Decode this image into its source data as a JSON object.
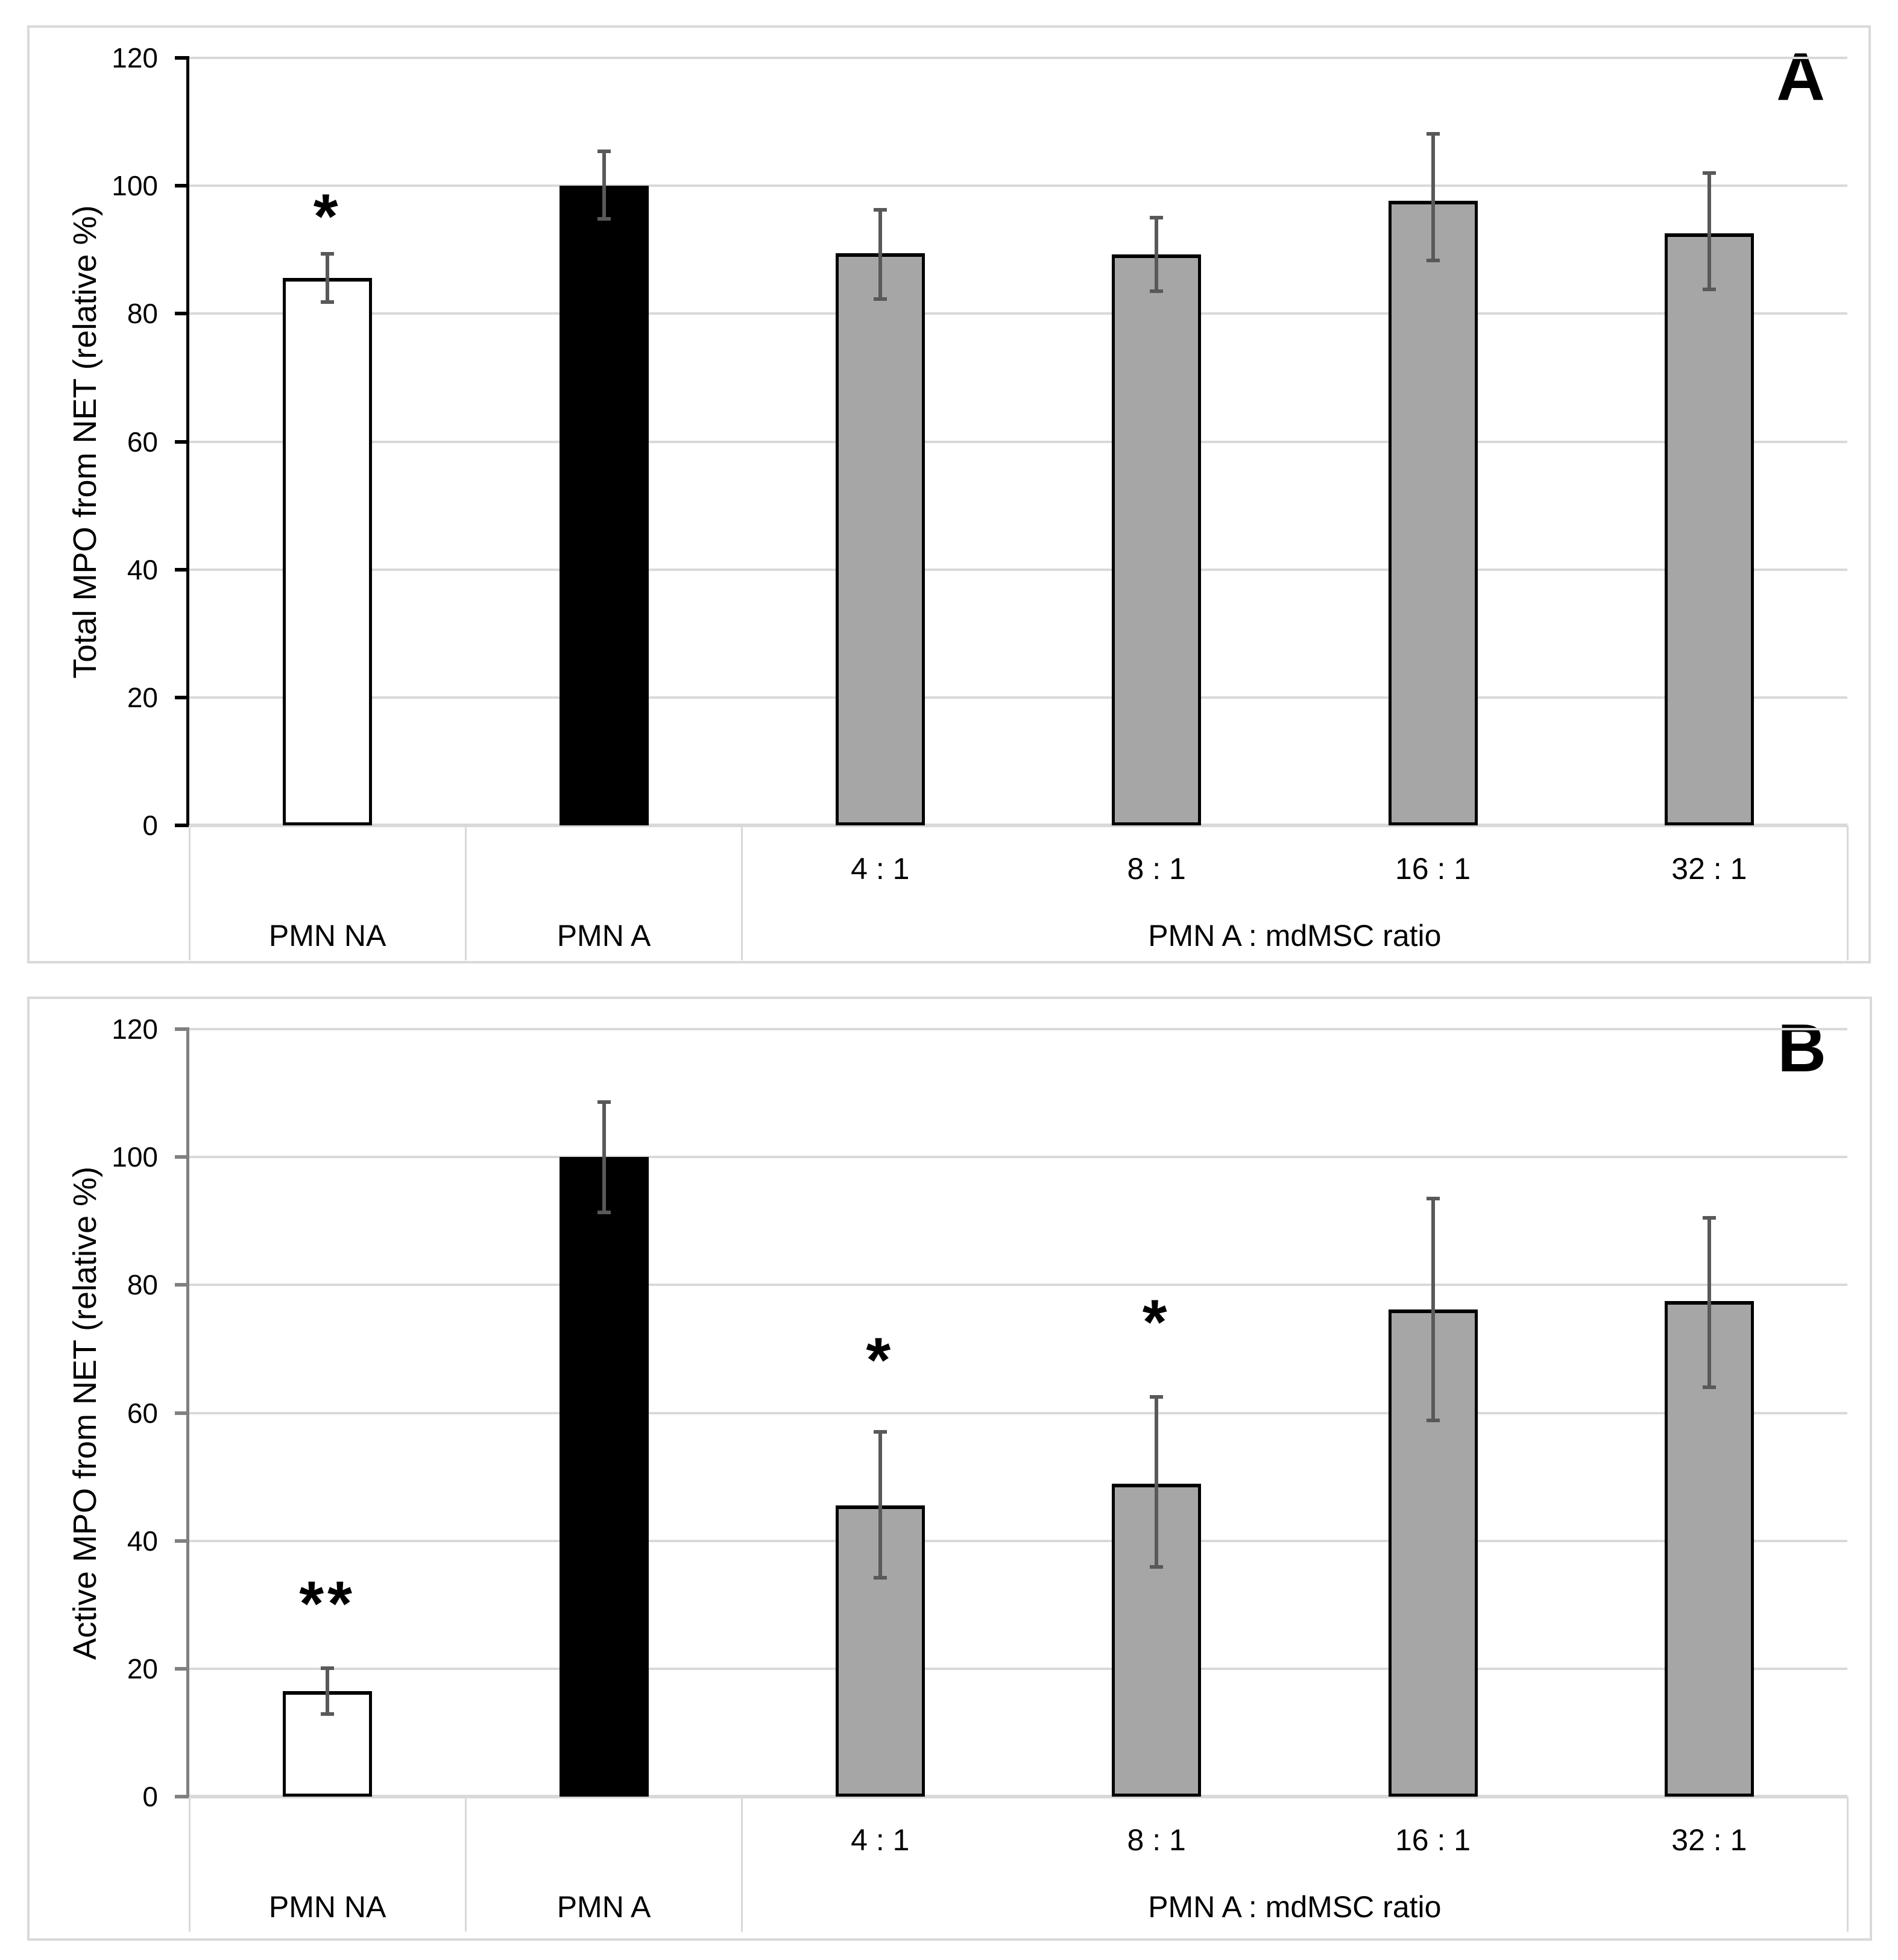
{
  "page": {
    "background": "#ffffff"
  },
  "styles": {
    "panel_border_color": "#d9d9d9",
    "gridline_color": "#d9d9d9",
    "baseline_color": "#d9d9d9",
    "divider_color": "#d9d9d9",
    "error_bar_color": "#595959",
    "bar_border_color": "#000000",
    "gray_bar_fill": "#a6a6a6",
    "text_color": "#000000"
  },
  "chart_data": [
    {
      "type": "bar",
      "panel_label": "A",
      "title": "",
      "xlabel": "",
      "ylabel": "Total MPO from NET (relative %)",
      "ylim": [
        0,
        120
      ],
      "ytick_step": 20,
      "ytick_labels": [
        "0",
        "20",
        "40",
        "60",
        "80",
        "100",
        "120"
      ],
      "grid": true,
      "axis_color": "#000000",
      "categories": [
        "PMN NA",
        "PMN A",
        "4 : 1",
        "8 : 1",
        "16 : 1",
        "32 : 1"
      ],
      "x_tick_labels": [
        "",
        "",
        "4 : 1",
        "8 : 1",
        "16 : 1",
        "32 : 1"
      ],
      "x_groups": [
        {
          "label": "PMN NA",
          "from": 0,
          "to": 1
        },
        {
          "label": "PMN A",
          "from": 1,
          "to": 2
        },
        {
          "label": "PMN A : mdMSC ratio",
          "from": 2,
          "to": 6
        }
      ],
      "values": [
        85.6,
        100,
        89.5,
        89.3,
        97.7,
        92.6
      ],
      "error_low": [
        81.8,
        94.8,
        82.3,
        83.5,
        88.3,
        83.8
      ],
      "error_high": [
        89.4,
        105.4,
        96.2,
        95.0,
        108.1,
        102.0
      ],
      "bar_fills": [
        "#ffffff",
        "#000000",
        "#a6a6a6",
        "#a6a6a6",
        "#a6a6a6",
        "#a6a6a6"
      ],
      "annotations": [
        {
          "bar": 0,
          "text": "*",
          "level": 97
        }
      ]
    },
    {
      "type": "bar",
      "panel_label": "B",
      "title": "",
      "xlabel": "",
      "ylabel": "Active MPO from NET (relative %)",
      "ylim": [
        0,
        120
      ],
      "ytick_step": 20,
      "ytick_labels": [
        "0",
        "20",
        "40",
        "60",
        "80",
        "100",
        "120"
      ],
      "grid": true,
      "axis_color": "#808080",
      "categories": [
        "PMN NA",
        "PMN A",
        "4 : 1",
        "8 : 1",
        "16 : 1",
        "32 : 1"
      ],
      "x_tick_labels": [
        "",
        "",
        "4 : 1",
        "8 : 1",
        "16 : 1",
        "32 : 1"
      ],
      "x_groups": [
        {
          "label": "PMN NA",
          "from": 0,
          "to": 1
        },
        {
          "label": "PMN A",
          "from": 1,
          "to": 2
        },
        {
          "label": "PMN A : mdMSC ratio",
          "from": 2,
          "to": 6
        }
      ],
      "values": [
        16.5,
        100,
        45.5,
        48.9,
        76.2,
        77.5
      ],
      "error_low": [
        12.9,
        91.3,
        34.2,
        35.9,
        58.8,
        64.0
      ],
      "error_high": [
        20.1,
        108.6,
        57.0,
        62.5,
        93.5,
        90.5
      ],
      "bar_fills": [
        "#ffffff",
        "#000000",
        "#a6a6a6",
        "#a6a6a6",
        "#a6a6a6",
        "#a6a6a6"
      ],
      "annotations": [
        {
          "bar": 0,
          "text": "**",
          "level": 32
        },
        {
          "bar": 2,
          "text": "*",
          "level": 70
        },
        {
          "bar": 3,
          "text": "*",
          "level": 76
        }
      ]
    }
  ]
}
